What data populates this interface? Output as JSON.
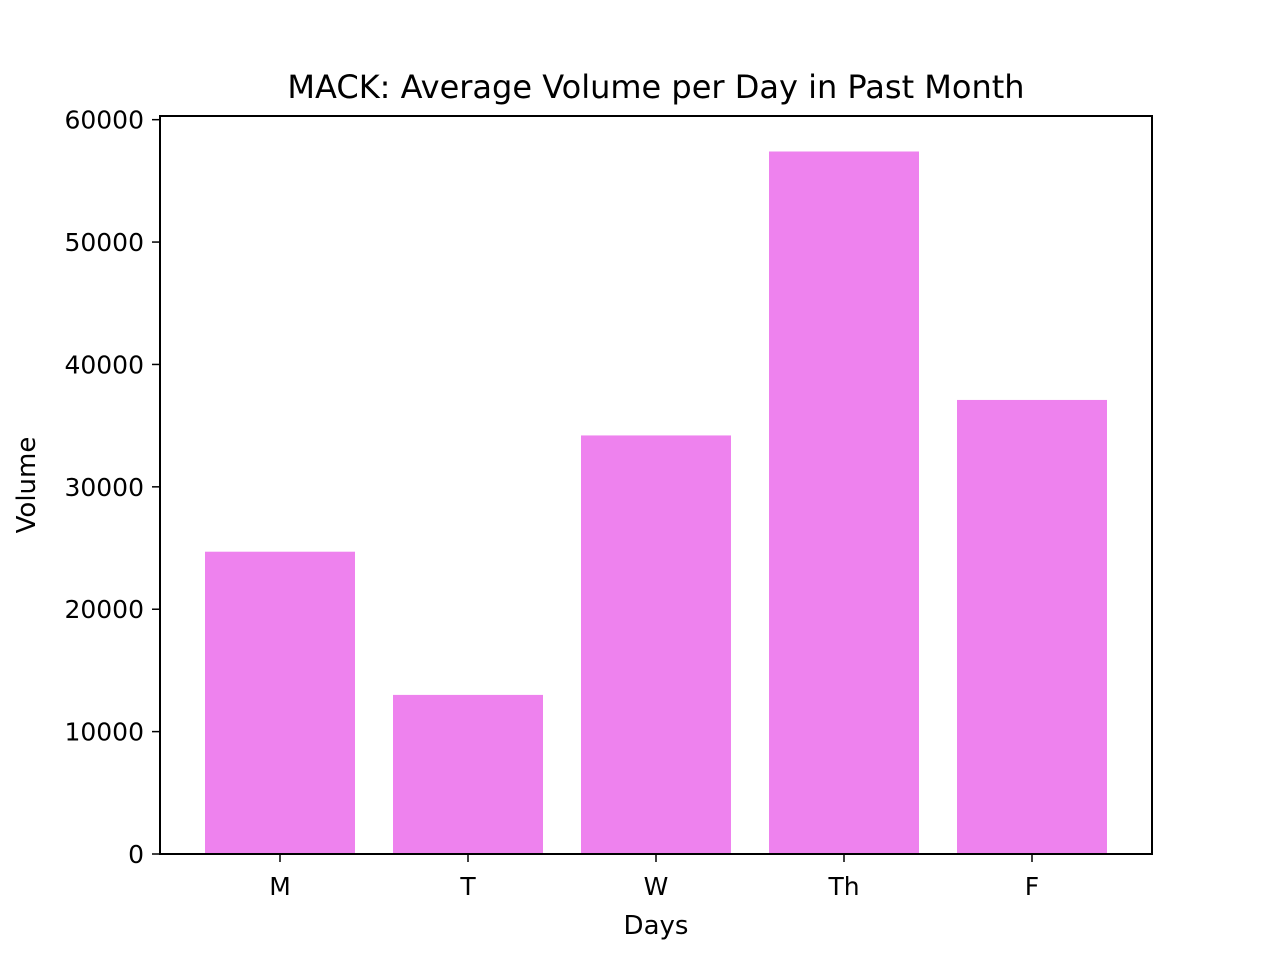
{
  "chart_data": {
    "type": "bar",
    "title": "MACK: Average Volume per Day in Past Month",
    "xlabel": "Days",
    "ylabel": "Volume",
    "categories": [
      "M",
      "T",
      "W",
      "Th",
      "F"
    ],
    "values": [
      24700,
      13000,
      34200,
      57400,
      37100
    ],
    "ylim": [
      0,
      60000
    ],
    "yticks": [
      0,
      10000,
      20000,
      30000,
      40000,
      50000,
      60000
    ],
    "bar_color": "#ee82ee",
    "grid": false,
    "legend": "none"
  }
}
